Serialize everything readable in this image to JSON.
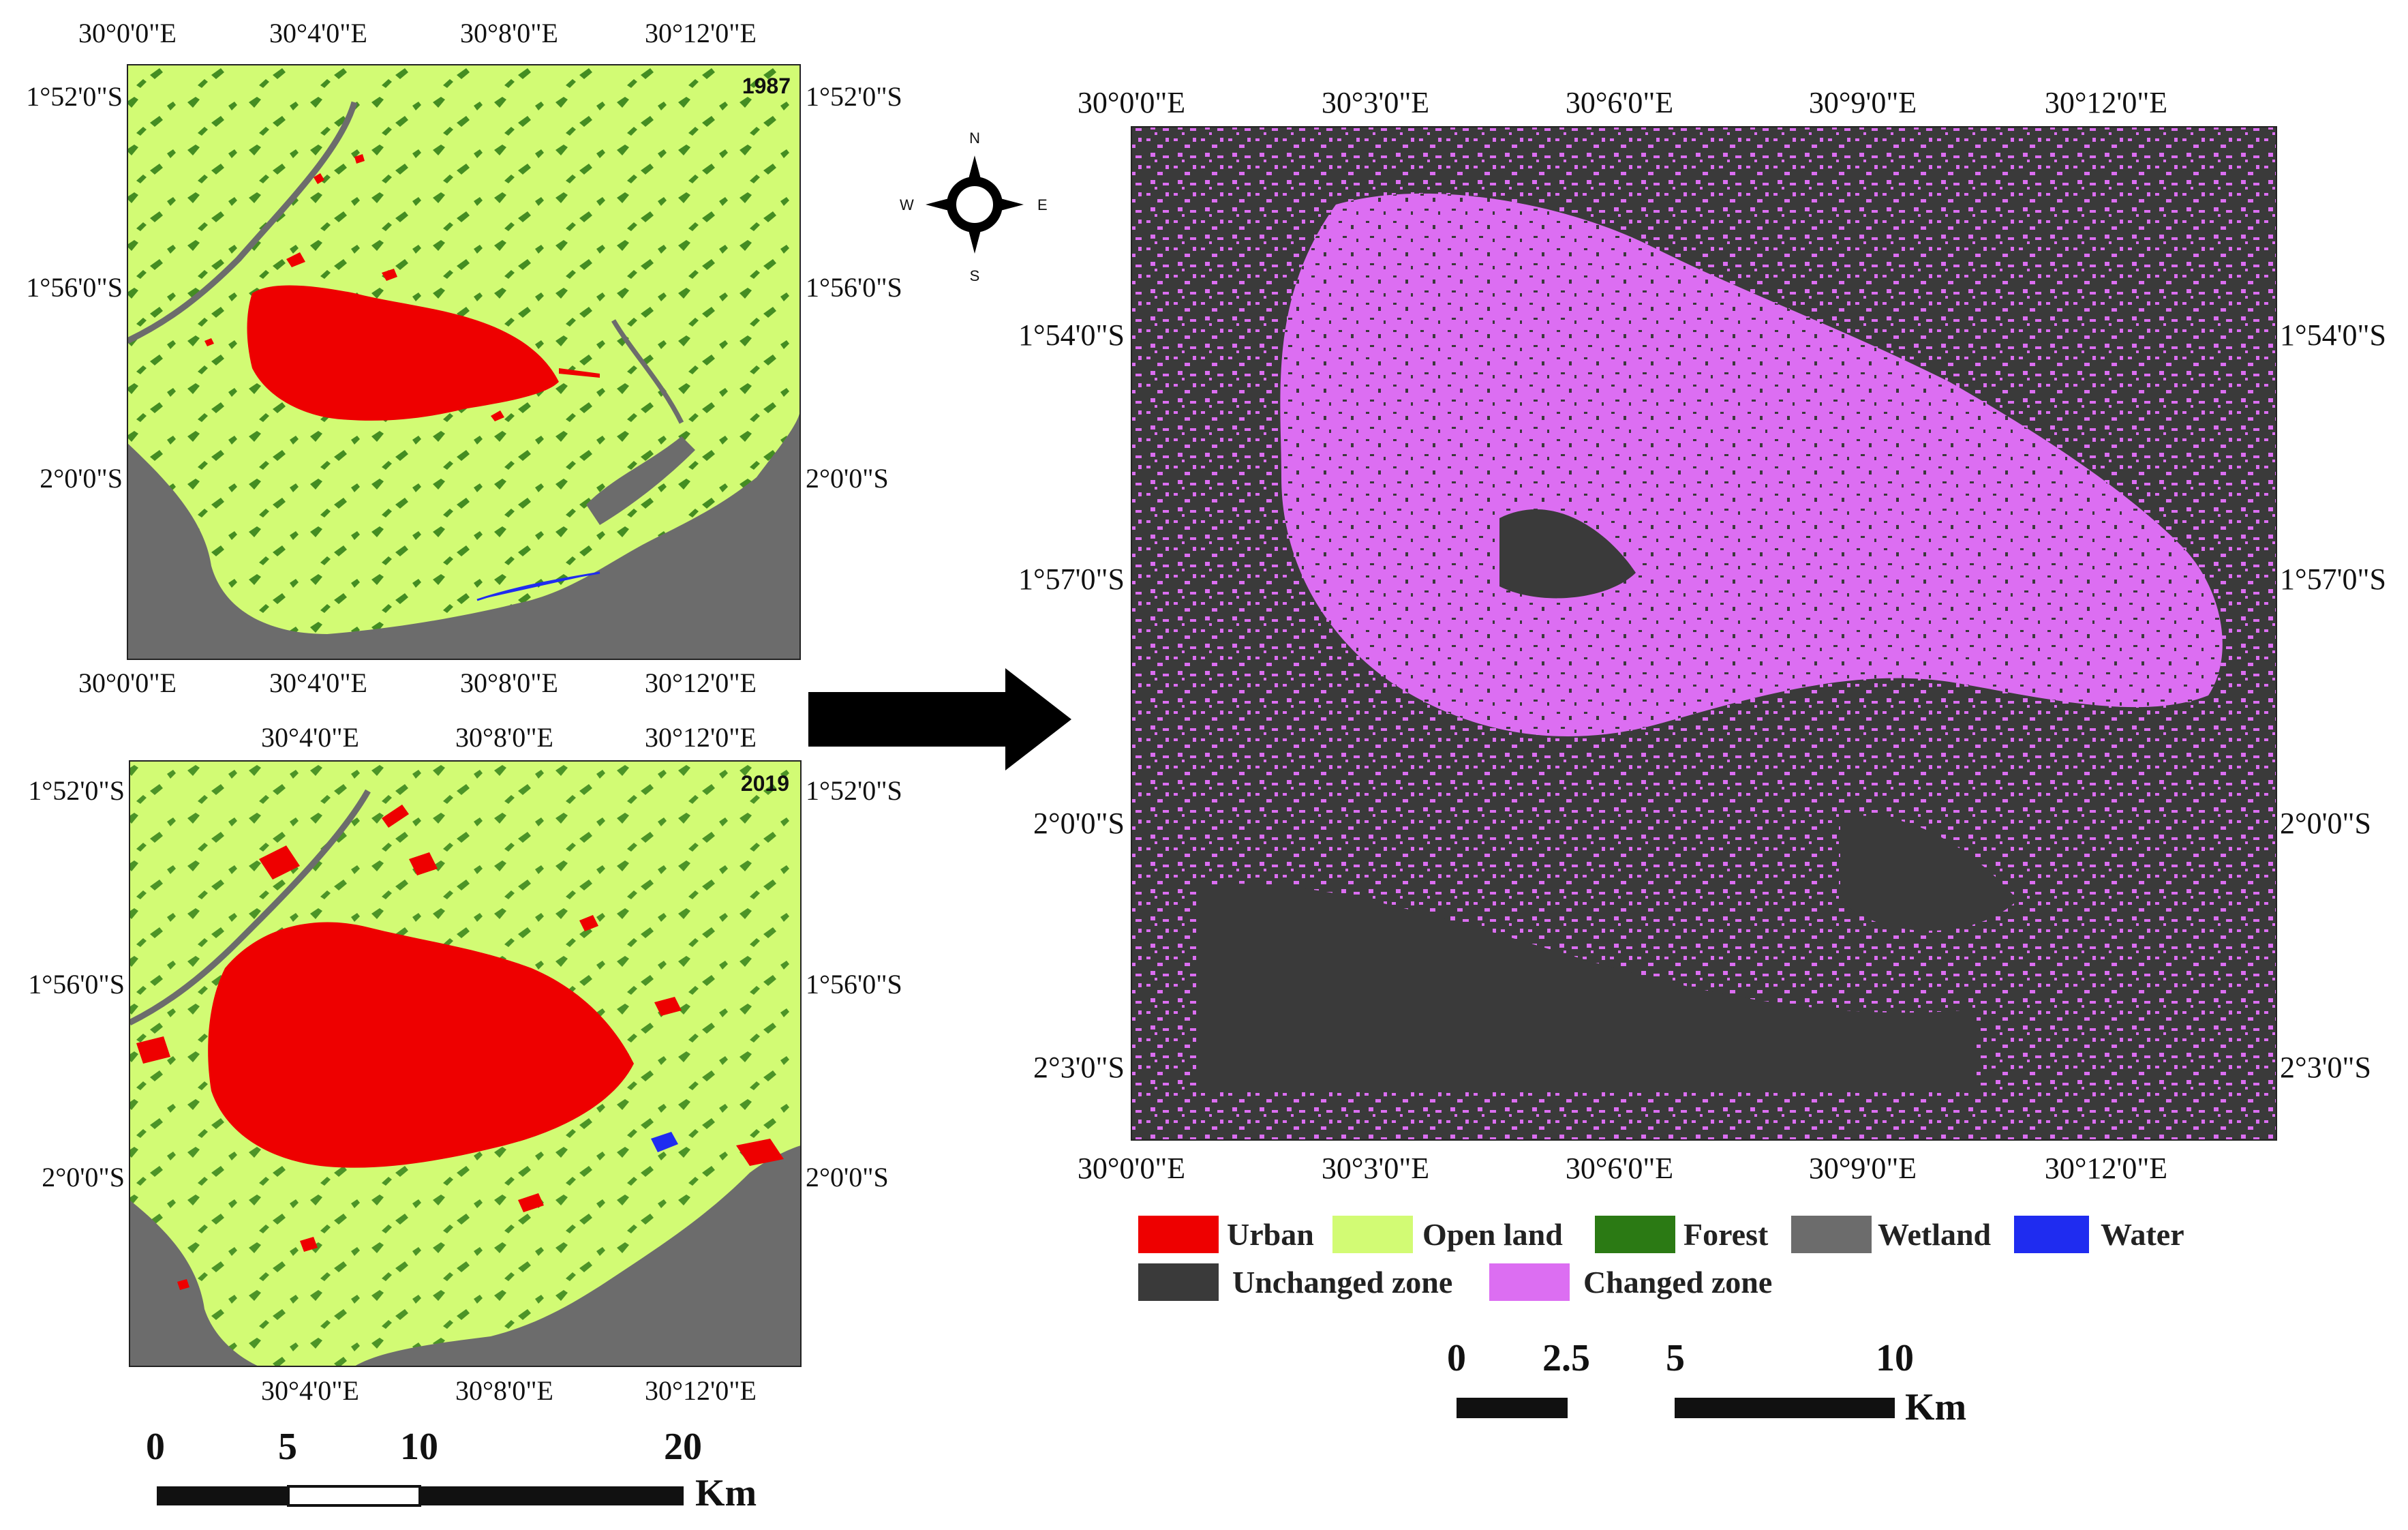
{
  "colors": {
    "urban": "#ee0000",
    "open_land": "#d2fb74",
    "forest": "#2b7a14",
    "wetland": "#6c6c6c",
    "water": "#1f2cf0",
    "unchanged": "#3a3a3a",
    "changed": "#dc6ef2"
  },
  "map_1987": {
    "year": "1987",
    "top_ticks": [
      "30°0'0\"E",
      "30°4'0\"E",
      "30°8'0\"E",
      "30°12'0\"E"
    ],
    "bottom_ticks": [
      "30°0'0\"E",
      "30°4'0\"E",
      "30°8'0\"E",
      "30°12'0\"E"
    ],
    "left_ticks": [
      "1°52'0\"S",
      "1°56'0\"S",
      "2°0'0\"S"
    ],
    "right_ticks": [
      "1°52'0\"S",
      "1°56'0\"S",
      "2°0'0\"S"
    ]
  },
  "map_2019": {
    "year": "2019",
    "top_ticks": [
      "30°4'0\"E",
      "30°8'0\"E",
      "30°12'0\"E"
    ],
    "bottom_ticks": [
      "30°4'0\"E",
      "30°8'0\"E",
      "30°12'0\"E"
    ],
    "left_ticks": [
      "1°52'0\"S",
      "1°56'0\"S",
      "2°0'0\"S"
    ],
    "right_ticks": [
      "1°52'0\"S",
      "1°56'0\"S",
      "2°0'0\"S"
    ]
  },
  "change_map": {
    "top_ticks": [
      "30°0'0\"E",
      "30°3'0\"E",
      "30°6'0\"E",
      "30°9'0\"E",
      "30°12'0\"E"
    ],
    "bottom_ticks": [
      "30°0'0\"E",
      "30°3'0\"E",
      "30°6'0\"E",
      "30°9'0\"E",
      "30°12'0\"E"
    ],
    "left_ticks": [
      "1°54'0\"S",
      "1°57'0\"S",
      "2°0'0\"S",
      "2°3'0\"S"
    ],
    "right_ticks": [
      "1°54'0\"S",
      "1°57'0\"S",
      "2°0'0\"S",
      "2°3'0\"S"
    ]
  },
  "compass": {
    "n": "N",
    "s": "S",
    "e": "E",
    "w": "W"
  },
  "legend": [
    {
      "label": "Urban",
      "color_key": "urban"
    },
    {
      "label": "Open land",
      "color_key": "open_land"
    },
    {
      "label": "Forest",
      "color_key": "forest"
    },
    {
      "label": "Wetland",
      "color_key": "wetland"
    },
    {
      "label": "Water",
      "color_key": "water"
    },
    {
      "label": "Unchanged zone",
      "color_key": "unchanged"
    },
    {
      "label": "Changed zone",
      "color_key": "changed"
    }
  ],
  "scalebar_left": {
    "ticks": [
      "0",
      "5",
      "10",
      "20"
    ],
    "unit": "Km"
  },
  "scalebar_right": {
    "ticks": [
      "0",
      "2.5",
      "5",
      "10"
    ],
    "unit": "Km"
  }
}
